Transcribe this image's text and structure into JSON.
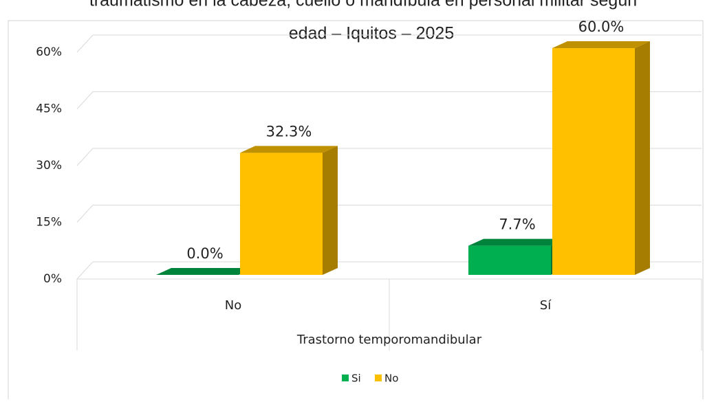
{
  "chart_data": {
    "type": "bar3d",
    "title_lines": [
      "traumatismo en la cabeza, cuello o mandíbula en personal militar según",
      "edad – Iquitos – 2025"
    ],
    "x_label": "Trastorno temporomandibular",
    "categories": [
      "No",
      "Sí"
    ],
    "series": [
      {
        "name": "Si",
        "color": "#00b050",
        "values": [
          0.0,
          7.7
        ],
        "value_labels": [
          "0.0%",
          "7.7%"
        ]
      },
      {
        "name": "No",
        "color": "#ffc000",
        "values": [
          32.3,
          60.0
        ],
        "value_labels": [
          "32.3%",
          "60.0%"
        ]
      }
    ],
    "ylim": [
      0,
      60
    ],
    "yticks": [
      {
        "value": 0,
        "label": "0%"
      },
      {
        "value": 15,
        "label": "15%"
      },
      {
        "value": 30,
        "label": "30%"
      },
      {
        "value": 45,
        "label": "45%"
      },
      {
        "value": 60,
        "label": "60%"
      }
    ],
    "grid": true,
    "legend": "bottom"
  }
}
